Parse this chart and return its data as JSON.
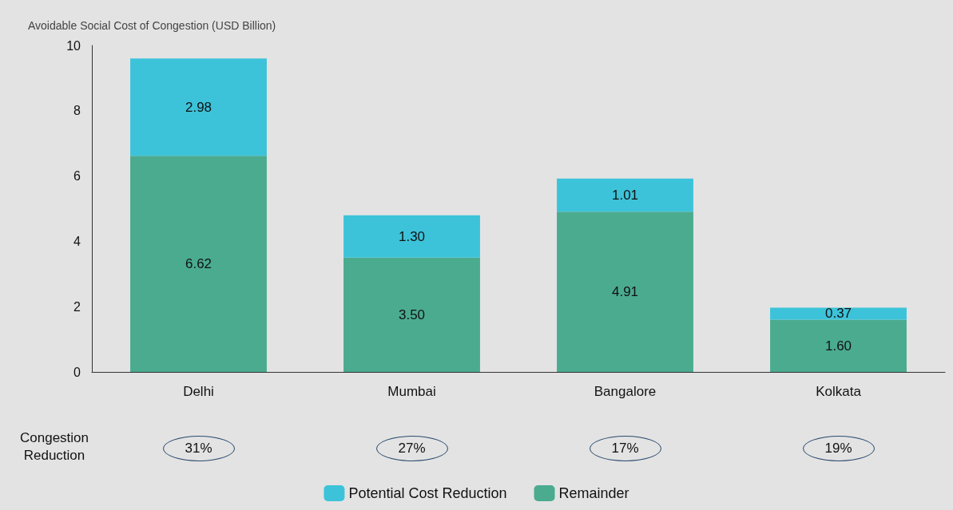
{
  "chart_data": {
    "type": "bar",
    "stacked": true,
    "ylabel": "Avoidable Social Cost of Congestion (USD Billion)",
    "categories": [
      "Delhi",
      "Mumbai",
      "Bangalore",
      "Kolkata"
    ],
    "series": [
      {
        "name": "Remainder",
        "color": "#4aab8f",
        "values": [
          6.62,
          3.5,
          4.91,
          1.6
        ],
        "value_labels": [
          "6.62",
          "3.50",
          "4.91",
          "1.60"
        ]
      },
      {
        "name": "Potential Cost Reduction",
        "color": "#3cc3d9",
        "values": [
          2.98,
          1.3,
          1.01,
          0.37
        ],
        "value_labels": [
          "2.98",
          "1.30",
          "1.01",
          "0.37"
        ]
      }
    ],
    "ylim": [
      0,
      10
    ],
    "yticks": [
      0,
      2,
      4,
      6,
      8,
      10
    ],
    "grid": false,
    "legend": "bottom",
    "annotations": [
      "Congestion Reduction",
      "31%",
      "27%",
      "17%",
      "19%"
    ]
  }
}
